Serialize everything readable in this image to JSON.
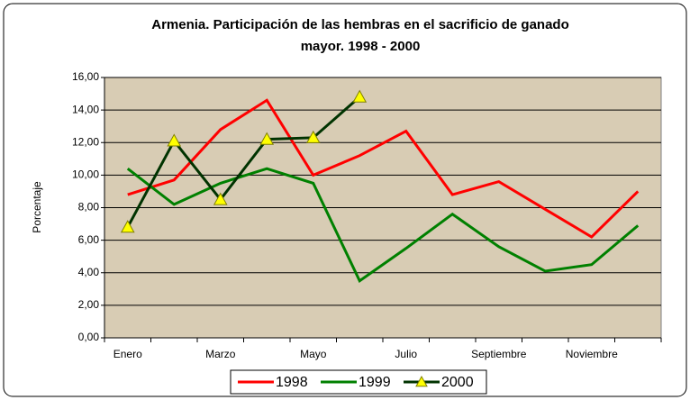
{
  "chart_data": {
    "type": "line",
    "title": [
      "Armenia.  Participación de las hembras en el sacrificio de ganado",
      "mayor. 1998 - 2000"
    ],
    "y_label": "Porcentaje",
    "categories": [
      "Enero",
      null,
      "Marzo",
      null,
      "Mayo",
      null,
      "Julio",
      null,
      "Septiembre",
      null,
      "Noviembre",
      null
    ],
    "series": [
      {
        "name": "1998",
        "color": "#ff0000",
        "values": [
          8.8,
          9.7,
          12.8,
          14.6,
          10.0,
          11.2,
          12.7,
          8.8,
          9.6,
          7.9,
          6.2,
          9.0
        ]
      },
      {
        "name": "1999",
        "color": "#008000",
        "values": [
          10.4,
          8.2,
          9.5,
          10.4,
          9.5,
          3.5,
          5.5,
          7.6,
          5.6,
          4.1,
          4.5,
          6.9
        ]
      },
      {
        "name": "2000",
        "color": "#003300",
        "marker_color": "#ffff00",
        "values": [
          6.8,
          12.1,
          8.5,
          12.2,
          12.3,
          14.8,
          null,
          null,
          null,
          null,
          null,
          null
        ]
      }
    ],
    "ylim": [
      0,
      16
    ],
    "yticks": [
      {
        "value": 0,
        "label": "0,00"
      },
      {
        "value": 2,
        "label": "2,00"
      },
      {
        "value": 4,
        "label": "4,00"
      },
      {
        "value": 6,
        "label": "6,00"
      },
      {
        "value": 8,
        "label": "8,00"
      },
      {
        "value": 10,
        "label": "10,00"
      },
      {
        "value": 12,
        "label": "12,00"
      },
      {
        "value": 14,
        "label": "14,00"
      },
      {
        "value": 16,
        "label": "16,00"
      }
    ],
    "grid": true,
    "legend": "bottom"
  }
}
